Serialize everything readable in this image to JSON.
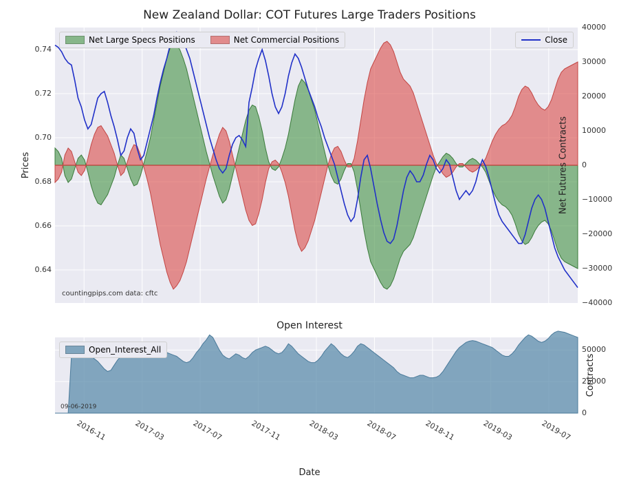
{
  "main": {
    "title": "New Zealand Dollar: COT Futures Large Traders Positions",
    "ylabel_left": "Prices",
    "ylabel_right": "Net Futures Contracts",
    "credit": "countingpips.com    data: cftc",
    "bg_color": "#eaeaf2",
    "grid_color": "#ffffff",
    "x_ticks": [
      "2016-11",
      "2017-03",
      "2017-07",
      "2017-11",
      "2018-03",
      "2018-07",
      "2018-11",
      "2019-03",
      "2019-07"
    ],
    "y_left": {
      "min": 0.625,
      "max": 0.75,
      "ticks": [
        0.64,
        0.66,
        0.68,
        0.7,
        0.72,
        0.74
      ],
      "fontsize": 11
    },
    "y_right": {
      "min": -40000,
      "max": 40000,
      "ticks": [
        -40000,
        -30000,
        -20000,
        -10000,
        0,
        10000,
        20000,
        30000,
        40000
      ],
      "fontsize": 11
    },
    "legend": {
      "specs_label": "Net Large Specs Positions",
      "comm_label": "Net Commercial Positions",
      "close_label": "Close"
    },
    "colors": {
      "specs_fill": "rgba(74,150,74,0.62)",
      "specs_edge": "#3a7a3a",
      "comm_fill": "rgba(220,80,78,0.62)",
      "comm_edge": "#c24442",
      "close_line": "#2030c8",
      "zero_line": "#c24442"
    },
    "n_points": 160,
    "specs": [
      5000,
      4000,
      2000,
      -3000,
      -5000,
      -4000,
      -1000,
      2000,
      3000,
      1500,
      -2000,
      -6000,
      -9000,
      -11000,
      -11500,
      -10000,
      -8500,
      -6000,
      -3500,
      0,
      3000,
      2000,
      -1000,
      -4000,
      -6000,
      -5500,
      -3000,
      500,
      4000,
      8000,
      13000,
      18000,
      23000,
      27000,
      31000,
      34000,
      36000,
      35000,
      33500,
      31000,
      28000,
      24000,
      20000,
      16000,
      12000,
      8000,
      4000,
      500,
      -3000,
      -6000,
      -9000,
      -11000,
      -10000,
      -7000,
      -3000,
      1000,
      5000,
      9000,
      13000,
      16000,
      17500,
      17000,
      14000,
      10000,
      5000,
      1000,
      -1000,
      -1500,
      -500,
      2000,
      5000,
      9000,
      14000,
      19000,
      23000,
      25000,
      24000,
      22000,
      19000,
      16000,
      12000,
      8000,
      4000,
      0,
      -3000,
      -5000,
      -5500,
      -4000,
      -1500,
      500,
      500,
      -2000,
      -7000,
      -13000,
      -19000,
      -24000,
      -28000,
      -30000,
      -32000,
      -34000,
      -35500,
      -36000,
      -35000,
      -33000,
      -30000,
      -27000,
      -25000,
      -24000,
      -23000,
      -21000,
      -18000,
      -15000,
      -12000,
      -9000,
      -6000,
      -3000,
      -500,
      1000,
      2500,
      3500,
      3000,
      2000,
      500,
      -500,
      -500,
      500,
      1500,
      2000,
      1500,
      500,
      -500,
      -2000,
      -4500,
      -7000,
      -9000,
      -10500,
      -11500,
      -12000,
      -13000,
      -14500,
      -17000,
      -20000,
      -22000,
      -23000,
      -22500,
      -21000,
      -19000,
      -17500,
      -16500,
      -16000,
      -17000,
      -19000,
      -22000,
      -25000,
      -27000,
      -28000,
      -28500,
      -29000,
      -29500,
      -30000
    ],
    "comm": [
      -5000,
      -4000,
      -2000,
      3000,
      5000,
      4000,
      1000,
      -2000,
      -3000,
      -1500,
      2000,
      6000,
      9000,
      11000,
      11500,
      10000,
      8500,
      6000,
      3500,
      0,
      -3000,
      -2000,
      1000,
      4000,
      6000,
      5500,
      3000,
      -500,
      -4000,
      -8000,
      -13000,
      -18000,
      -23000,
      -27000,
      -31000,
      -34000,
      -36000,
      -35000,
      -33500,
      -31000,
      -28000,
      -24000,
      -20000,
      -16000,
      -12000,
      -8000,
      -4000,
      -500,
      3000,
      6000,
      9000,
      11000,
      10000,
      7000,
      3000,
      -1000,
      -5000,
      -9000,
      -13000,
      -16000,
      -17500,
      -17000,
      -14000,
      -10000,
      -5000,
      -1000,
      1000,
      1500,
      500,
      -2000,
      -5000,
      -9000,
      -14000,
      -19000,
      -23000,
      -25000,
      -24000,
      -22000,
      -19000,
      -16000,
      -12000,
      -8000,
      -4000,
      0,
      3000,
      5000,
      5500,
      4000,
      1500,
      -500,
      -500,
      2000,
      7000,
      13000,
      19000,
      24000,
      28000,
      30000,
      32000,
      34000,
      35500,
      36000,
      35000,
      33000,
      30000,
      27000,
      25000,
      24000,
      23000,
      21000,
      18000,
      15000,
      12000,
      9000,
      6000,
      3000,
      500,
      -1000,
      -2500,
      -3500,
      -3000,
      -2000,
      -500,
      500,
      500,
      -500,
      -1500,
      -2000,
      -1500,
      -500,
      500,
      2000,
      4500,
      7000,
      9000,
      10500,
      11500,
      12000,
      13000,
      14500,
      17000,
      20000,
      22000,
      23000,
      22500,
      21000,
      19000,
      17500,
      16500,
      16000,
      17000,
      19000,
      22000,
      25000,
      27000,
      28000,
      28500,
      29000,
      29500,
      30000
    ],
    "close": [
      0.742,
      0.741,
      0.739,
      0.736,
      0.734,
      0.733,
      0.726,
      0.718,
      0.714,
      0.708,
      0.704,
      0.706,
      0.712,
      0.718,
      0.72,
      0.721,
      0.716,
      0.71,
      0.705,
      0.699,
      0.692,
      0.694,
      0.7,
      0.704,
      0.702,
      0.695,
      0.69,
      0.692,
      0.698,
      0.704,
      0.71,
      0.718,
      0.725,
      0.731,
      0.736,
      0.742,
      0.746,
      0.748,
      0.747,
      0.744,
      0.74,
      0.736,
      0.73,
      0.724,
      0.718,
      0.712,
      0.706,
      0.7,
      0.695,
      0.69,
      0.686,
      0.684,
      0.686,
      0.692,
      0.697,
      0.7,
      0.701,
      0.699,
      0.696,
      0.716,
      0.723,
      0.731,
      0.736,
      0.74,
      0.735,
      0.728,
      0.72,
      0.714,
      0.711,
      0.714,
      0.72,
      0.728,
      0.734,
      0.738,
      0.736,
      0.732,
      0.727,
      0.722,
      0.718,
      0.714,
      0.709,
      0.705,
      0.7,
      0.696,
      0.692,
      0.688,
      0.682,
      0.676,
      0.67,
      0.665,
      0.662,
      0.664,
      0.672,
      0.682,
      0.69,
      0.692,
      0.686,
      0.678,
      0.67,
      0.663,
      0.657,
      0.653,
      0.652,
      0.654,
      0.66,
      0.668,
      0.676,
      0.682,
      0.685,
      0.683,
      0.68,
      0.68,
      0.683,
      0.688,
      0.692,
      0.69,
      0.686,
      0.684,
      0.686,
      0.69,
      0.688,
      0.682,
      0.676,
      0.672,
      0.674,
      0.676,
      0.674,
      0.676,
      0.68,
      0.686,
      0.69,
      0.687,
      0.682,
      0.676,
      0.67,
      0.665,
      0.662,
      0.66,
      0.658,
      0.656,
      0.654,
      0.652,
      0.652,
      0.656,
      0.662,
      0.668,
      0.672,
      0.674,
      0.672,
      0.668,
      0.662,
      0.656,
      0.65,
      0.646,
      0.643,
      0.64,
      0.638,
      0.636,
      0.634,
      0.632
    ]
  },
  "oi": {
    "title": "Open Interest",
    "ylabel": "Contracts",
    "legend_label": "Open_Interest_All",
    "date_stamp": "09-06-2019",
    "xlabel": "Date",
    "fill_color": "rgba(93,142,172,0.75)",
    "edge_color": "#4a7a9a",
    "y": {
      "min": 0,
      "max": 60000,
      "ticks": [
        0,
        25000,
        50000
      ]
    },
    "values": [
      0,
      0,
      0,
      0,
      0,
      46000,
      45000,
      44000,
      44500,
      46000,
      47000,
      45000,
      43000,
      41000,
      38000,
      35000,
      33000,
      34000,
      38000,
      42000,
      45000,
      47000,
      48000,
      49000,
      50000,
      51000,
      50000,
      49000,
      50000,
      51000,
      53000,
      55000,
      53000,
      50000,
      48000,
      47000,
      46000,
      45000,
      43000,
      41000,
      40000,
      41000,
      44000,
      48000,
      51000,
      55000,
      58000,
      62000,
      60000,
      55000,
      50000,
      46000,
      44000,
      43000,
      45000,
      47000,
      46000,
      44000,
      43000,
      45000,
      48000,
      50000,
      51000,
      52000,
      53000,
      52000,
      50000,
      48000,
      47000,
      48000,
      51000,
      55000,
      53000,
      50000,
      47000,
      45000,
      43000,
      41000,
      40000,
      40000,
      42000,
      45000,
      49000,
      52000,
      55000,
      53000,
      50000,
      47000,
      45000,
      44000,
      46000,
      49000,
      53000,
      55000,
      54000,
      52000,
      50000,
      48000,
      46000,
      44000,
      42000,
      40000,
      38000,
      36000,
      33000,
      31000,
      30000,
      29000,
      28000,
      28000,
      29000,
      30000,
      30000,
      29000,
      28000,
      28000,
      28500,
      30000,
      33000,
      37000,
      41000,
      45000,
      49000,
      52000,
      54000,
      56000,
      57000,
      57500,
      57000,
      56000,
      55000,
      54000,
      53000,
      52000,
      50000,
      48000,
      46000,
      45000,
      45000,
      47000,
      50000,
      54000,
      57000,
      60000,
      62000,
      61000,
      59000,
      57000,
      56000,
      57000,
      59000,
      62000,
      64000,
      65000,
      64500,
      64000,
      63000,
      62000,
      61000,
      60000
    ]
  }
}
